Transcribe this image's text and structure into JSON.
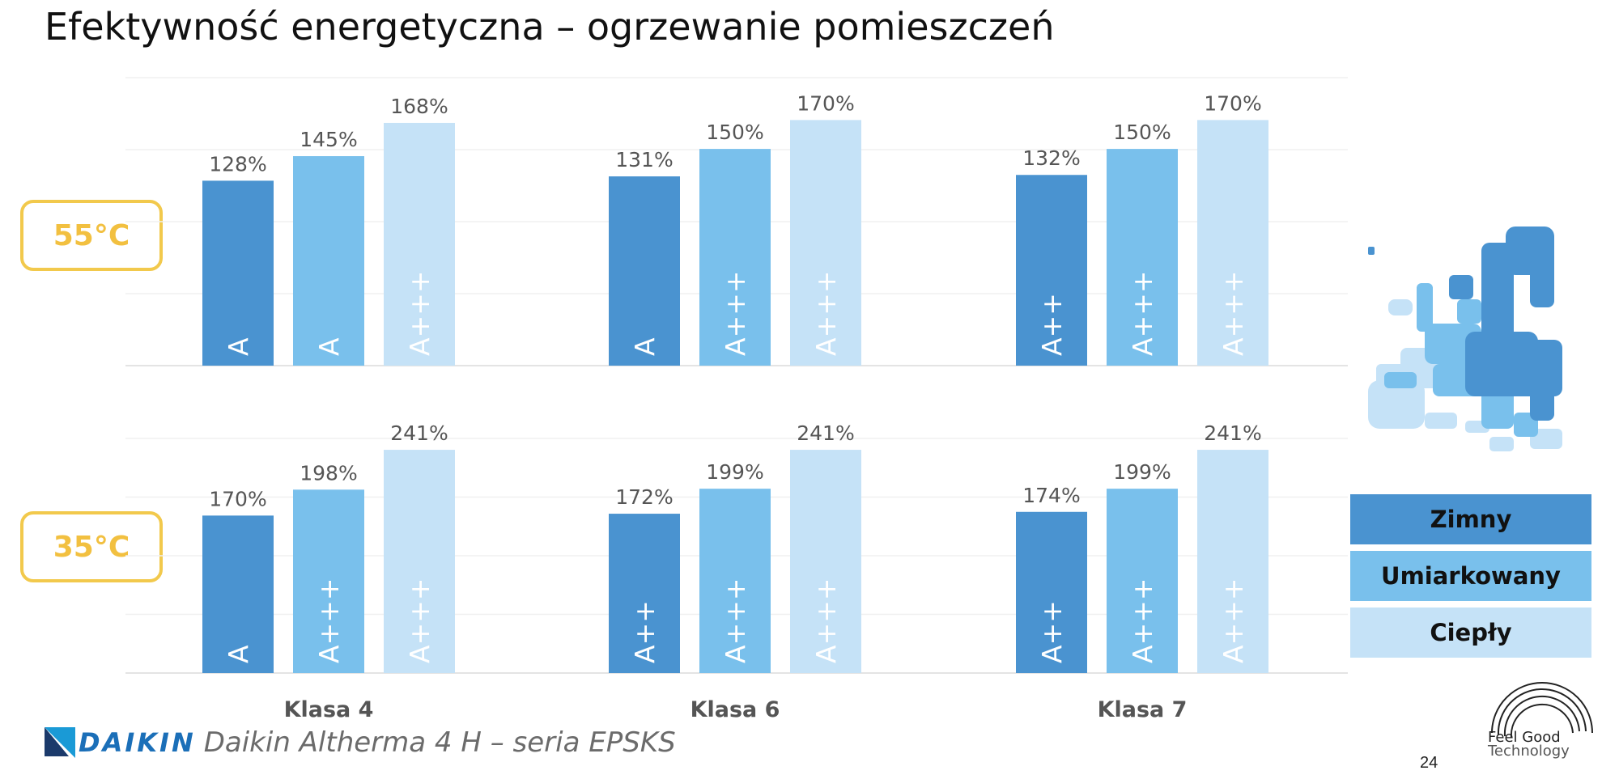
{
  "header": {
    "title": "Efektywność energetyczna – ogrzewanie pomieszczeń"
  },
  "badges": {
    "top": "55°C",
    "bottom": "35°C"
  },
  "chart_data": {
    "type": "bar",
    "title": "Efektywność energetyczna – ogrzewanie pomieszczeń",
    "categories": [
      "Klasa 4",
      "Klasa 6",
      "Klasa 7"
    ],
    "panels": [
      {
        "name": "55°C",
        "series": [
          {
            "name": "Zimny",
            "values": [
              128,
              131,
              132
            ],
            "labels": [
              "A",
              "A",
              "A++"
            ]
          },
          {
            "name": "Umiarkowany",
            "values": [
              145,
              150,
              150
            ],
            "labels": [
              "A",
              "A+++",
              "A+++"
            ]
          },
          {
            "name": "Ciepły",
            "values": [
              168,
              170,
              170
            ],
            "labels": [
              "A+++",
              "A+++",
              "A+++"
            ]
          }
        ]
      },
      {
        "name": "35°C",
        "series": [
          {
            "name": "Zimny",
            "values": [
              170,
              172,
              174
            ],
            "labels": [
              "A",
              "A++",
              "A++"
            ]
          },
          {
            "name": "Umiarkowany",
            "values": [
              198,
              199,
              199
            ],
            "labels": [
              "A+++",
              "A+++",
              "A+++"
            ]
          },
          {
            "name": "Ciepły",
            "values": [
              241,
              241,
              241
            ],
            "labels": [
              "A+++",
              "A+++",
              "A+++"
            ]
          }
        ]
      }
    ],
    "value_suffix": "%",
    "legend_placement": "right",
    "grid": true
  },
  "colors": {
    "zimny": "#4a93d0",
    "umiarkowany": "#79c0ec",
    "cieply": "#c5e2f7",
    "accent": "#f2c94c"
  },
  "legend": {
    "items": [
      {
        "label": "Zimny"
      },
      {
        "label": "Umiarkowany"
      },
      {
        "label": "Ciepły"
      }
    ]
  },
  "footer": {
    "brand": "DAIKIN",
    "subtitle": "Daikin Altherma 4 H – seria EPSKS",
    "page_number": "24",
    "logo_line1": "Feel Good",
    "logo_line2": "Technology"
  }
}
